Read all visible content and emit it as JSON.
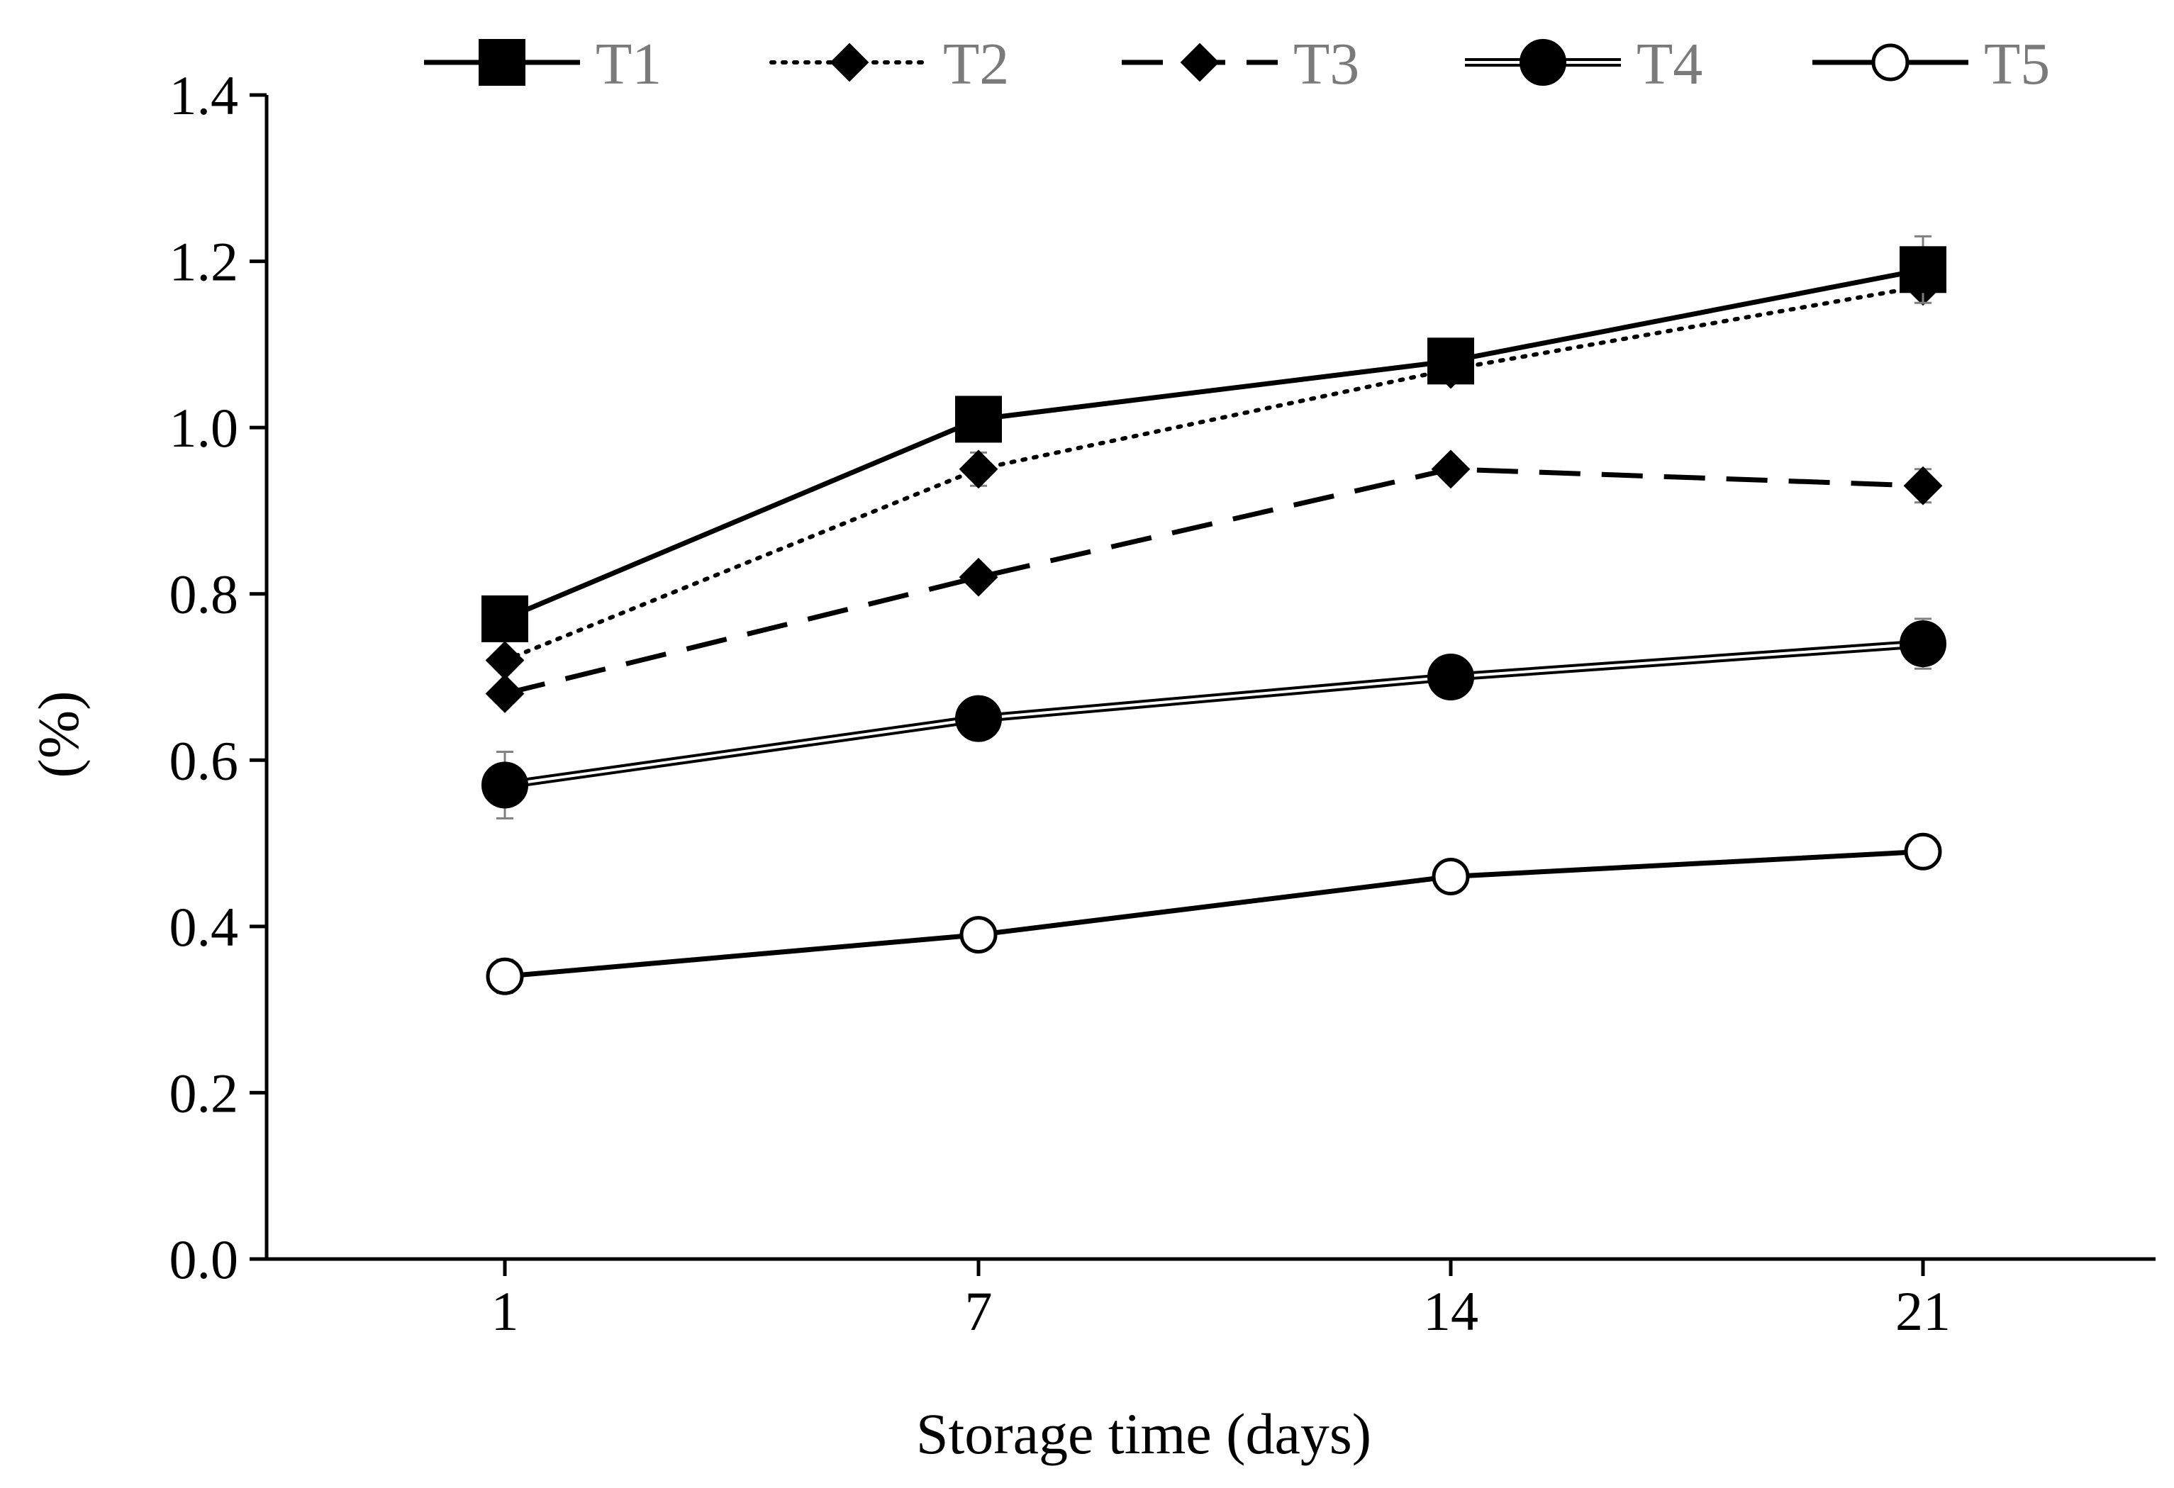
{
  "chart_data": {
    "type": "line",
    "title": "",
    "xlabel": "Storage time (days)",
    "ylabel": "(%)",
    "categories": [
      "1",
      "7",
      "14",
      "21"
    ],
    "ylim": [
      0.0,
      1.4
    ],
    "yticks": [
      "0.0",
      "0.2",
      "0.4",
      "0.6",
      "0.8",
      "1.0",
      "1.2",
      "1.4"
    ],
    "ytick_values": [
      0.0,
      0.2,
      0.4,
      0.6,
      0.8,
      1.0,
      1.2,
      1.4
    ],
    "grid": false,
    "legend_position": "top",
    "series": [
      {
        "name": "T1",
        "marker": "square",
        "line": "solid",
        "values": [
          0.77,
          1.01,
          1.08,
          1.19
        ],
        "errors": [
          0.01,
          0.01,
          0.01,
          0.04
        ]
      },
      {
        "name": "T2",
        "marker": "diamond",
        "line": "dotted",
        "values": [
          0.72,
          0.95,
          1.07,
          1.17
        ],
        "errors": [
          0.01,
          0.02,
          0.01,
          0.01
        ]
      },
      {
        "name": "T3",
        "marker": "diamond",
        "line": "dashed",
        "values": [
          0.68,
          0.82,
          0.95,
          0.93
        ],
        "errors": [
          0.01,
          0.01,
          0.01,
          0.02
        ]
      },
      {
        "name": "T4",
        "marker": "circle-filled",
        "line": "double",
        "values": [
          0.57,
          0.65,
          0.7,
          0.74
        ],
        "errors": [
          0.04,
          0.01,
          0.01,
          0.03
        ]
      },
      {
        "name": "T5",
        "marker": "circle-open",
        "line": "solid",
        "values": [
          0.34,
          0.39,
          0.46,
          0.49
        ],
        "errors": [
          0.02,
          0.01,
          0.01,
          0.01
        ]
      }
    ],
    "colors": {
      "axis": "#000000",
      "line": "#000000",
      "legend_text": "#7a7a7a",
      "error_bar": "#808080"
    }
  }
}
